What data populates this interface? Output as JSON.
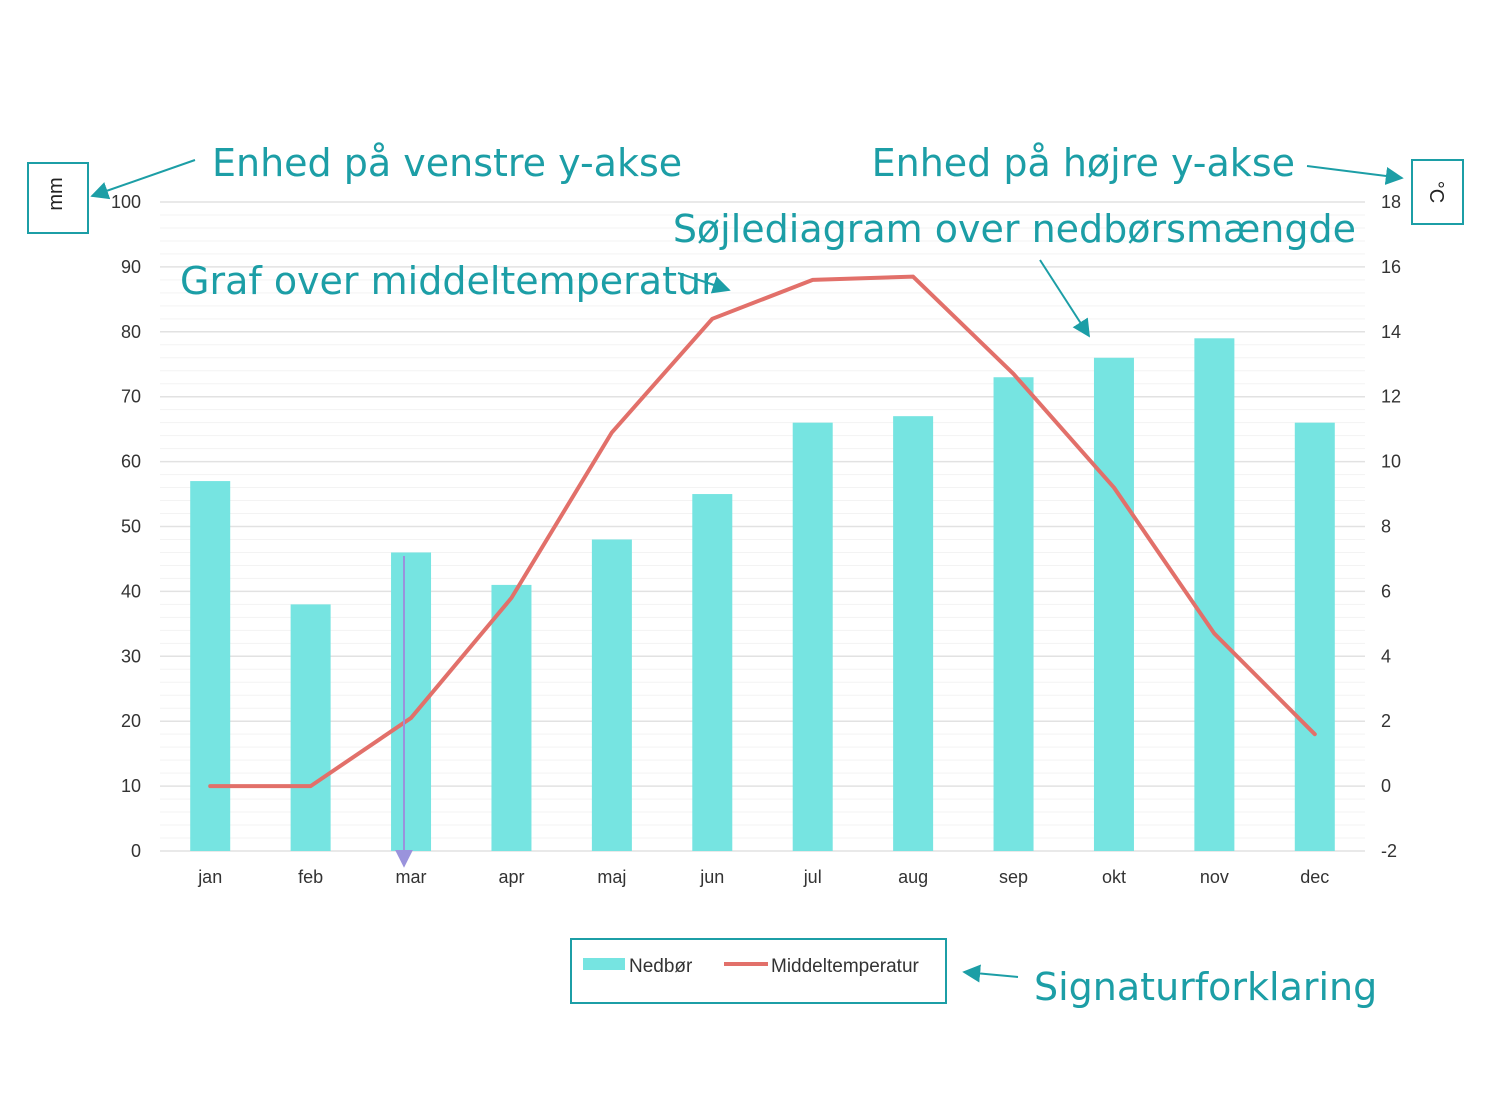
{
  "chart_data": {
    "type": "bar",
    "categories": [
      "jan",
      "feb",
      "mar",
      "apr",
      "maj",
      "jun",
      "jul",
      "aug",
      "sep",
      "okt",
      "nov",
      "dec"
    ],
    "series": [
      {
        "name": "Nedbør",
        "type": "bar",
        "axis": "left",
        "values": [
          57,
          38,
          46,
          41,
          48,
          55,
          66,
          67,
          73,
          76,
          79,
          66
        ]
      },
      {
        "name": "Middeltemperatur",
        "type": "line",
        "axis": "right",
        "values": [
          0,
          0,
          2.1,
          5.8,
          10.9,
          14.4,
          15.6,
          15.7,
          12.7,
          9.2,
          4.7,
          1.6
        ]
      }
    ],
    "y_left": {
      "unit": "mm",
      "lim": [
        0,
        100
      ],
      "ticks": [
        0,
        10,
        20,
        30,
        40,
        50,
        60,
        70,
        80,
        90,
        100
      ]
    },
    "y_right": {
      "unit": "°C",
      "lim": [
        -2,
        18
      ],
      "ticks": [
        -2,
        0,
        2,
        4,
        6,
        8,
        10,
        12,
        14,
        16,
        18
      ]
    },
    "grid": true,
    "legend_position": "bottom"
  },
  "annotations": {
    "left_axis_unit": "Enhed på venstre y-akse",
    "right_axis_unit": "Enhed på højre y-akse",
    "bar_chart": "Søjlediagram over nedbørsmængde",
    "line_graph": "Graf over middeltemperatur",
    "legend": "Signaturforklaring"
  },
  "colors": {
    "bar": "#76e4e1",
    "line": "#e2706a",
    "annotation": "#1c9ea6",
    "axis_marker": "#9a93dc"
  }
}
